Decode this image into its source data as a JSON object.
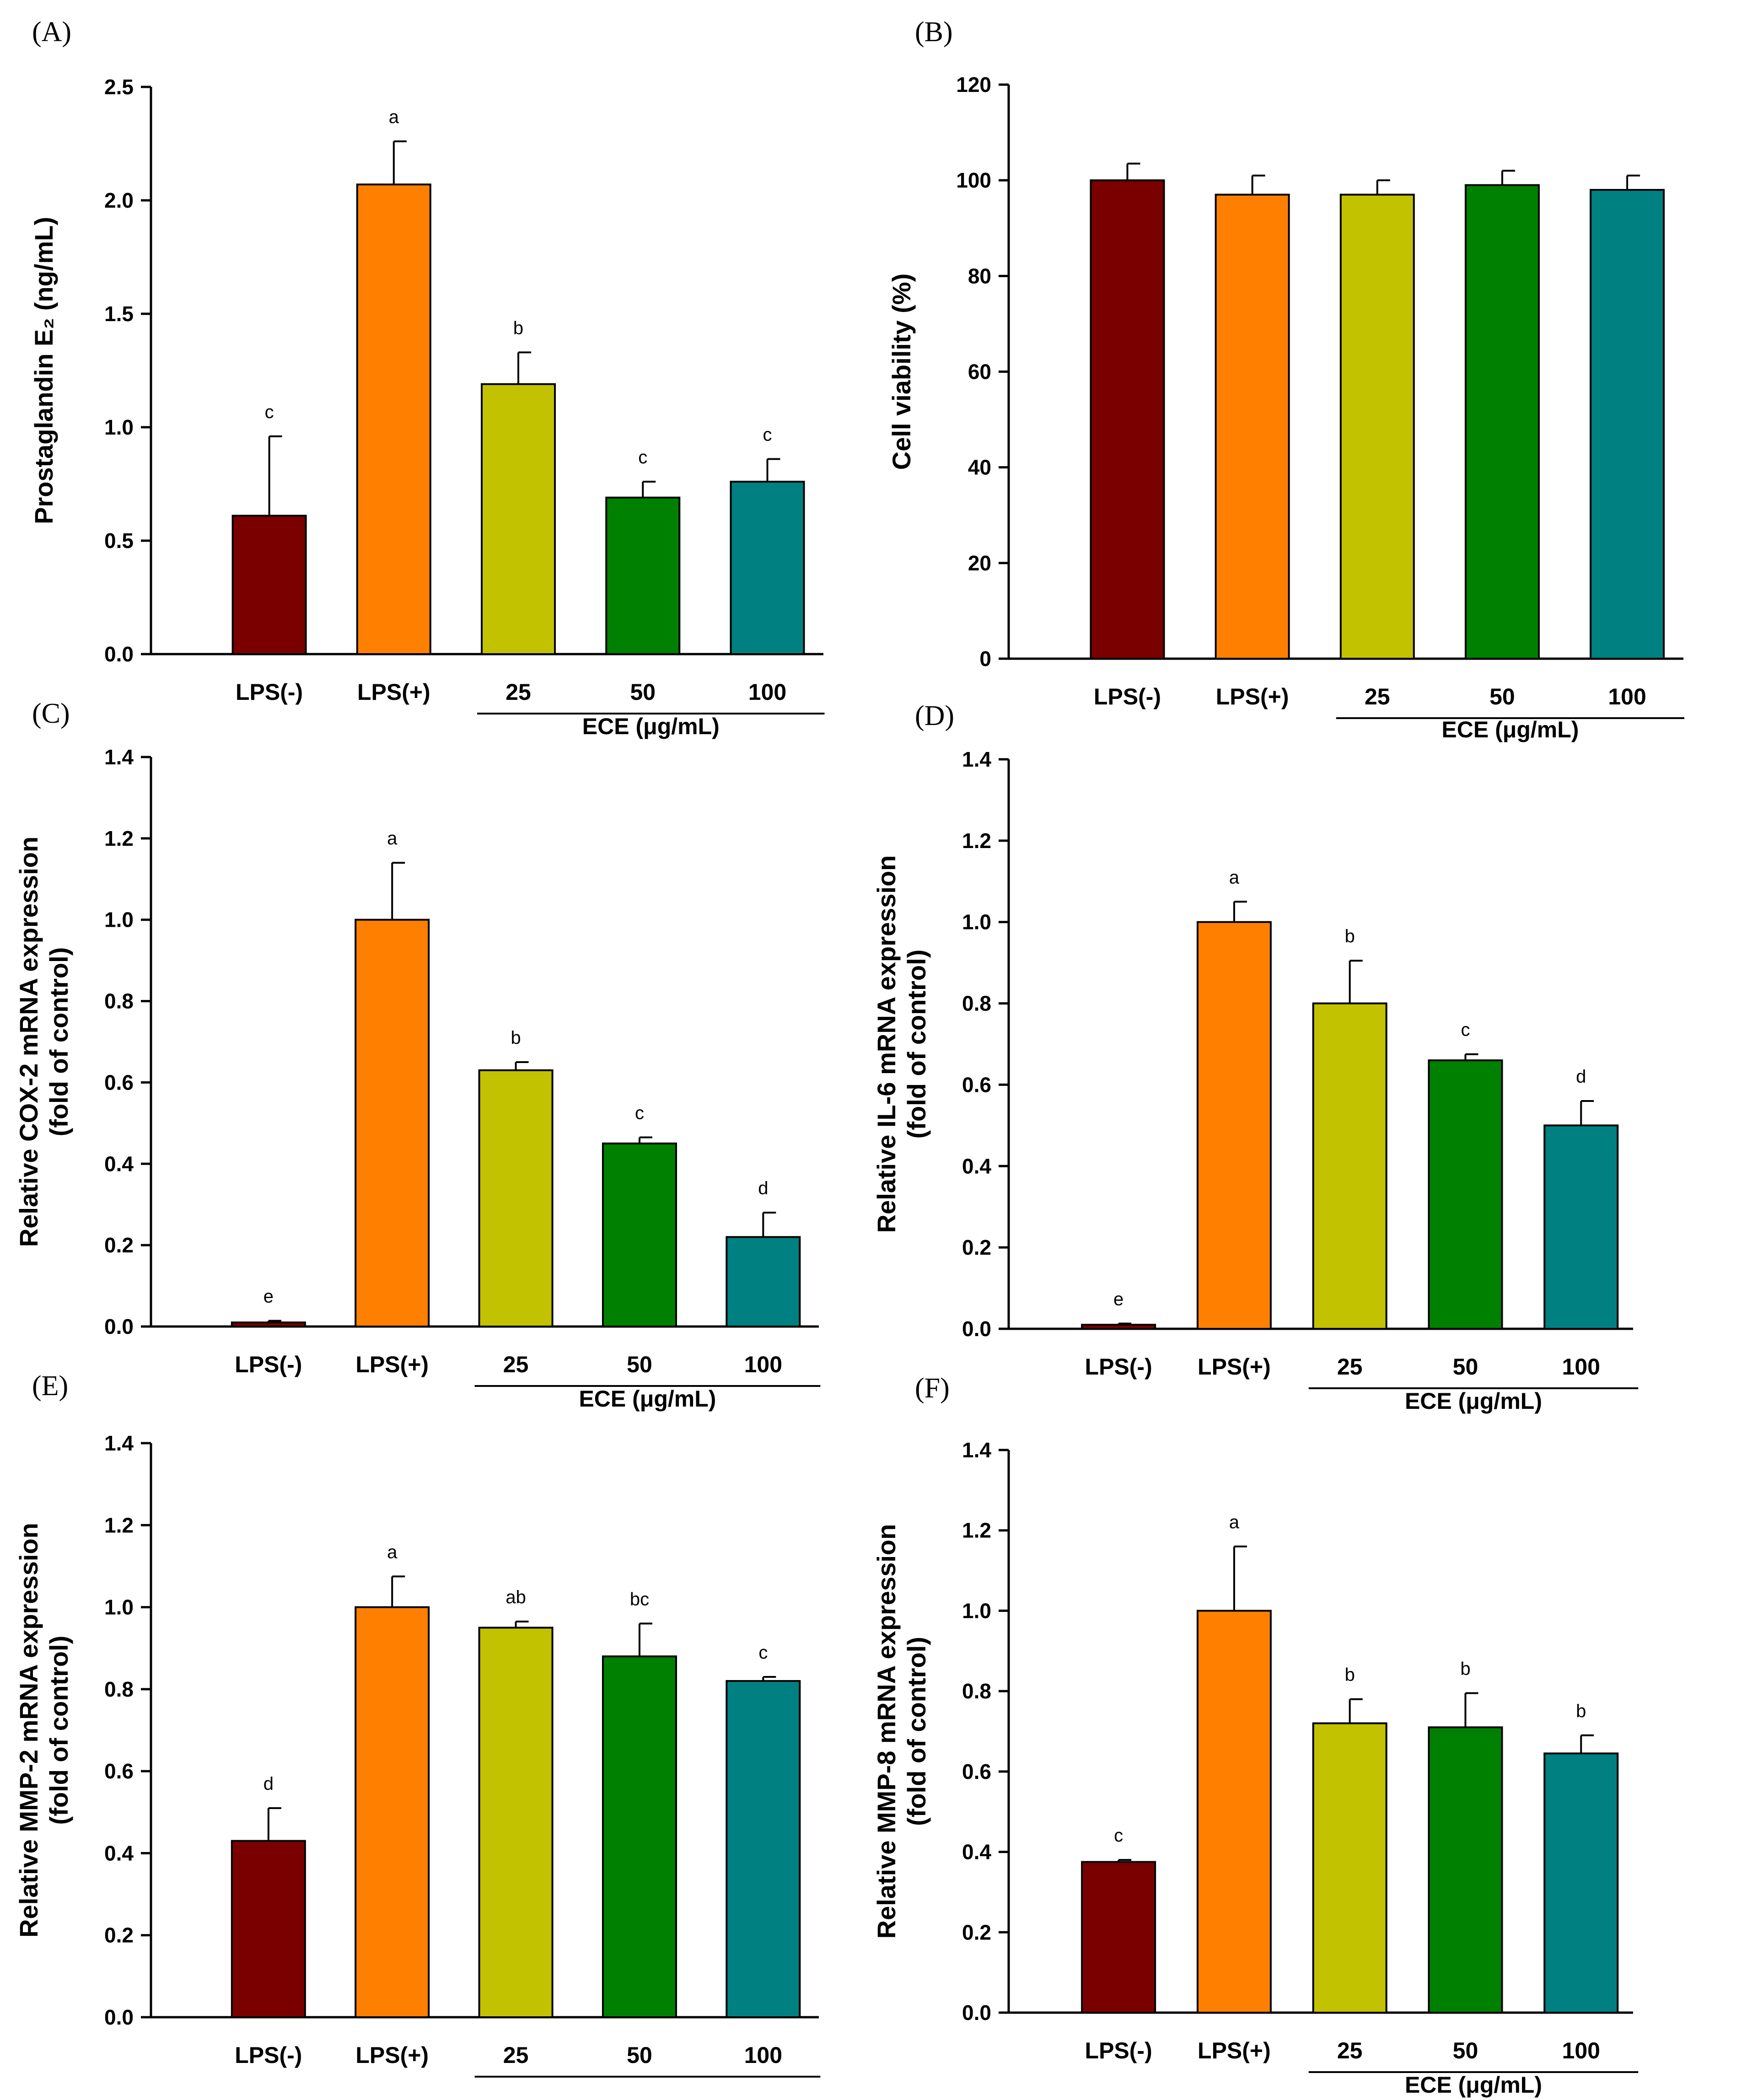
{
  "figure": {
    "bar_colors": [
      "#7a0000",
      "#ff8000",
      "#c2c200",
      "#008000",
      "#008080"
    ],
    "axis_color": "#000000"
  },
  "chart_data": [
    {
      "id": "A",
      "panel_label": "(A)",
      "type": "bar",
      "categories": [
        "LPS(-)",
        "LPS(+)",
        "25",
        "50",
        "100"
      ],
      "values": [
        0.61,
        2.07,
        1.19,
        0.69,
        0.76
      ],
      "errors": [
        0.35,
        0.19,
        0.14,
        0.07,
        0.1
      ],
      "significance": [
        "c",
        "a",
        "b",
        "c",
        "c"
      ],
      "ylabel_lines": [
        "Prostaglandin E₂ (ng/mL)"
      ],
      "ylim": [
        0,
        2.5
      ],
      "yticks": [
        "0.0",
        "0.5",
        "1.0",
        "1.5",
        "2.0",
        "2.5"
      ],
      "group_label": "ECE (μg/mL)"
    },
    {
      "id": "B",
      "panel_label": "(B)",
      "type": "bar",
      "categories": [
        "LPS(-)",
        "LPS(+)",
        "25",
        "50",
        "100"
      ],
      "values": [
        100,
        97,
        97,
        99,
        98
      ],
      "errors": [
        3.5,
        4,
        3,
        3,
        3
      ],
      "significance": [
        "",
        "",
        "",
        "",
        ""
      ],
      "ylabel_lines": [
        "Cell viability (%)"
      ],
      "ylim": [
        0,
        120
      ],
      "yticks": [
        "0",
        "20",
        "40",
        "60",
        "80",
        "100",
        "120"
      ],
      "group_label": "ECE (μg/mL)"
    },
    {
      "id": "C",
      "panel_label": "(C)",
      "type": "bar",
      "categories": [
        "LPS(-)",
        "LPS(+)",
        "25",
        "50",
        "100"
      ],
      "values": [
        0.01,
        1.0,
        0.63,
        0.45,
        0.22
      ],
      "errors": [
        0.004,
        0.14,
        0.02,
        0.015,
        0.06
      ],
      "significance": [
        "e",
        "a",
        "b",
        "c",
        "d"
      ],
      "ylabel_lines": [
        "Relative COX-2 mRNA expression",
        "(fold of control)"
      ],
      "ylim": [
        0,
        1.4
      ],
      "yticks": [
        "0.0",
        "0.2",
        "0.4",
        "0.6",
        "0.8",
        "1.0",
        "1.2",
        "1.4"
      ],
      "group_label": "ECE (μg/mL)"
    },
    {
      "id": "D",
      "panel_label": "(D)",
      "type": "bar",
      "categories": [
        "LPS(-)",
        "LPS(+)",
        "25",
        "50",
        "100"
      ],
      "values": [
        0.01,
        1.0,
        0.8,
        0.66,
        0.5
      ],
      "errors": [
        0.003,
        0.05,
        0.105,
        0.015,
        0.06
      ],
      "significance": [
        "e",
        "a",
        "b",
        "c",
        "d"
      ],
      "ylabel_lines": [
        "Relative IL-6 mRNA expression",
        "(fold of control)"
      ],
      "ylim": [
        0,
        1.4
      ],
      "yticks": [
        "0.0",
        "0.2",
        "0.4",
        "0.6",
        "0.8",
        "1.0",
        "1.2",
        "1.4"
      ],
      "group_label": "ECE (μg/mL)"
    },
    {
      "id": "E",
      "panel_label": "(E)",
      "type": "bar",
      "categories": [
        "LPS(-)",
        "LPS(+)",
        "25",
        "50",
        "100"
      ],
      "values": [
        0.43,
        1.0,
        0.95,
        0.88,
        0.82
      ],
      "errors": [
        0.08,
        0.075,
        0.015,
        0.08,
        0.01
      ],
      "significance": [
        "d",
        "a",
        "ab",
        "bc",
        "c"
      ],
      "ylabel_lines": [
        "Relative MMP-2 mRNA expression",
        "(fold of control)"
      ],
      "ylim": [
        0,
        1.4
      ],
      "yticks": [
        "0.0",
        "0.2",
        "0.4",
        "0.6",
        "0.8",
        "1.0",
        "1.2",
        "1.4"
      ],
      "group_label": ""
    },
    {
      "id": "F",
      "panel_label": "(F)",
      "type": "bar",
      "categories": [
        "LPS(-)",
        "LPS(+)",
        "25",
        "50",
        "100"
      ],
      "values": [
        0.375,
        1.0,
        0.72,
        0.71,
        0.645
      ],
      "errors": [
        0.005,
        0.16,
        0.06,
        0.085,
        0.045
      ],
      "significance": [
        "c",
        "a",
        "b",
        "b",
        "b"
      ],
      "ylabel_lines": [
        "Relative MMP-8 mRNA expression",
        "(fold of control)"
      ],
      "ylim": [
        0,
        1.4
      ],
      "yticks": [
        "0.0",
        "0.2",
        "0.4",
        "0.6",
        "0.8",
        "1.0",
        "1.2",
        "1.4"
      ],
      "group_label": "ECE (μg/mL)"
    }
  ]
}
